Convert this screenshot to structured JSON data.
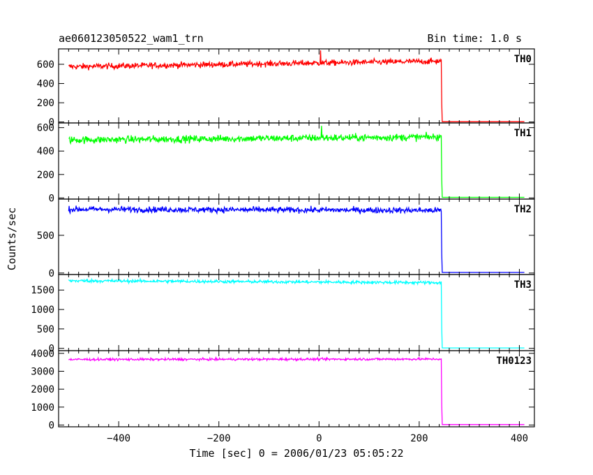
{
  "chart_data": {
    "type": "line",
    "title": "ae060123050522_wam1_trn",
    "subtitle": "Bin time: 1.0 s",
    "xlabel": "Time [sec] 0 = 2006/01/23 05:05:22",
    "ylabel": "Counts/sec",
    "xlim": [
      -520,
      430
    ],
    "xticks": [
      -400,
      -200,
      0,
      200,
      400
    ],
    "x_start": -500,
    "x_drop": 244,
    "x_end": 410,
    "bin": 1.0,
    "grid": false,
    "panels": [
      {
        "name": "TH0",
        "color": "#ff0000",
        "ylim": [
          -10,
          760
        ],
        "yticks": [
          0,
          200,
          400,
          600
        ],
        "level_start": 575,
        "level_end": 632,
        "noise": 22,
        "after": 3,
        "spike": {
          "x": 3,
          "value": 745
        }
      },
      {
        "name": "TH1",
        "color": "#00ff00",
        "ylim": [
          -10,
          640
        ],
        "yticks": [
          0,
          200,
          400,
          600
        ],
        "level_start": 495,
        "level_end": 520,
        "noise": 22,
        "after": 5,
        "spike": {
          "x": 5,
          "value": 615
        }
      },
      {
        "name": "TH2",
        "color": "#0000ff",
        "ylim": [
          -20,
          980
        ],
        "yticks": [
          0,
          500
        ],
        "level_start": 845,
        "level_end": 830,
        "noise": 28,
        "after": 8,
        "spike": null
      },
      {
        "name": "TH3",
        "color": "#00ffff",
        "ylim": [
          -60,
          1900
        ],
        "yticks": [
          0,
          500,
          1000,
          1500
        ],
        "level_start": 1740,
        "level_end": 1690,
        "noise": 28,
        "after": 10,
        "spike": null
      },
      {
        "name": "TH0123",
        "color": "#ff00ff",
        "ylim": [
          -100,
          4150
        ],
        "yticks": [
          0,
          1000,
          2000,
          3000,
          4000
        ],
        "level_start": 3660,
        "level_end": 3680,
        "noise": 45,
        "after": 25,
        "spike": null
      }
    ]
  }
}
